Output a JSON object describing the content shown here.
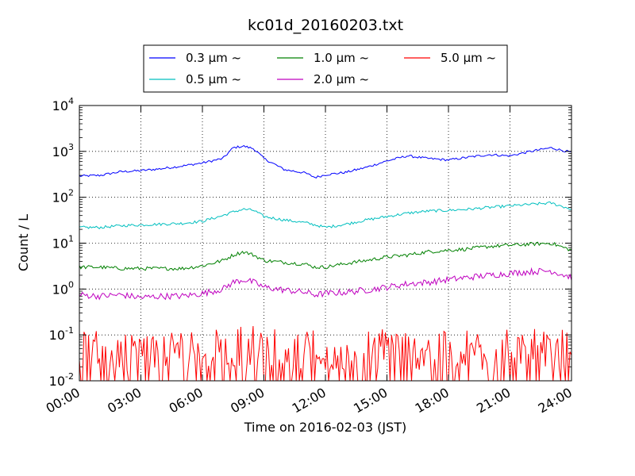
{
  "chart_data": {
    "type": "line",
    "title": "kc01d_20160203.txt",
    "xlabel": "Time on 2016-02-03 (JST)",
    "ylabel": "Count / L",
    "yscale": "log",
    "ylim": [
      0.01,
      10000
    ],
    "xlim": [
      "2016-02-03T00:00",
      "2016-02-04T00:00"
    ],
    "x_ticks": [
      "00:00",
      "03:00",
      "06:00",
      "09:00",
      "12:00",
      "15:00",
      "18:00",
      "21:00",
      "24:00"
    ],
    "y_ticks": [
      {
        "base": "10",
        "exp": "-2",
        "value": 0.01
      },
      {
        "base": "10",
        "exp": "-1",
        "value": 0.1
      },
      {
        "base": "10",
        "exp": "0",
        "value": 1
      },
      {
        "base": "10",
        "exp": "1",
        "value": 10
      },
      {
        "base": "10",
        "exp": "2",
        "value": 100
      },
      {
        "base": "10",
        "exp": "3",
        "value": 1000
      },
      {
        "base": "10",
        "exp": "4",
        "value": 10000
      }
    ],
    "grid": true,
    "legend_position": "top-center, outside plot",
    "x": [
      "00:00",
      "01:00",
      "02:00",
      "03:00",
      "04:00",
      "05:00",
      "06:00",
      "07:00",
      "07:30",
      "08:00",
      "08:30",
      "09:00",
      "10:00",
      "11:00",
      "11:30",
      "12:00",
      "13:00",
      "14:00",
      "15:00",
      "16:00",
      "17:00",
      "18:00",
      "19:00",
      "20:00",
      "21:00",
      "22:00",
      "23:00",
      "24:00"
    ],
    "series": [
      {
        "name": "0.3 μm ~",
        "color": "#0000ff",
        "noise": 0.025,
        "values": [
          290,
          300,
          360,
          380,
          420,
          480,
          560,
          700,
          1200,
          1300,
          1150,
          700,
          400,
          340,
          270,
          310,
          350,
          450,
          620,
          800,
          700,
          650,
          750,
          850,
          800,
          1000,
          1200,
          950
        ]
      },
      {
        "name": "0.5 μm ~",
        "color": "#00bfbf",
        "noise": 0.03,
        "values": [
          22,
          22,
          24,
          25,
          26,
          27,
          30,
          40,
          48,
          55,
          52,
          38,
          32,
          28,
          25,
          22,
          26,
          32,
          38,
          45,
          50,
          52,
          55,
          60,
          65,
          70,
          75,
          55
        ]
      },
      {
        "name": "1.0 μm ~",
        "color": "#008000",
        "noise": 0.04,
        "values": [
          3.0,
          3.0,
          2.8,
          2.8,
          2.8,
          2.8,
          3.2,
          4.2,
          5.5,
          6.5,
          5.5,
          4.2,
          3.8,
          3.5,
          3.0,
          3.0,
          3.6,
          4.2,
          5.0,
          5.5,
          6.5,
          7.0,
          7.5,
          8.5,
          9.0,
          9.5,
          10,
          7.0
        ]
      },
      {
        "name": "2.0 μm ~",
        "color": "#bf00bf",
        "noise": 0.07,
        "values": [
          0.75,
          0.7,
          0.75,
          0.65,
          0.7,
          0.7,
          0.8,
          1.0,
          1.4,
          1.6,
          1.4,
          1.1,
          0.95,
          0.85,
          0.75,
          0.8,
          0.85,
          0.95,
          1.1,
          1.3,
          1.4,
          1.6,
          1.8,
          2.0,
          2.2,
          2.4,
          2.5,
          1.8
        ]
      },
      {
        "name": "5.0 μm ~",
        "color": "#ff0000",
        "noise": 0.35,
        "values": [
          0.035,
          0.035,
          0.035,
          0.035,
          0.035,
          0.035,
          0.035,
          0.035,
          0.04,
          0.045,
          0.045,
          0.04,
          0.04,
          0.035,
          0.035,
          0.035,
          0.035,
          0.035,
          0.04,
          0.035,
          0.035,
          0.035,
          0.035,
          0.035,
          0.035,
          0.035,
          0.035,
          0.035
        ]
      }
    ]
  }
}
